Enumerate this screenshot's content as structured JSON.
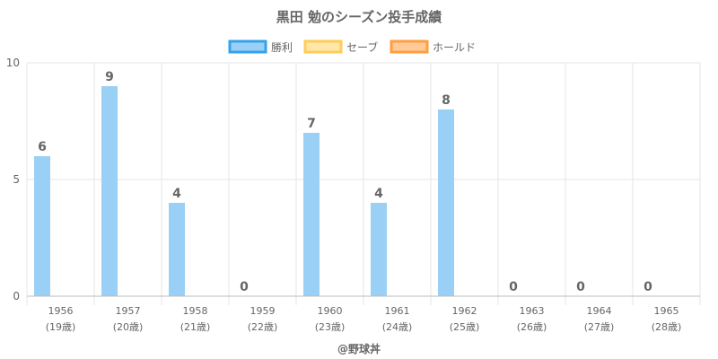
{
  "chart_data": {
    "type": "bar",
    "title": "黒田 勉のシーズン投手成績",
    "categories": [
      "1956",
      "1957",
      "1958",
      "1959",
      "1960",
      "1961",
      "1962",
      "1963",
      "1964",
      "1965"
    ],
    "ages": [
      "(19歳)",
      "(20歳)",
      "(21歳)",
      "(22歳)",
      "(23歳)",
      "(24歳)",
      "(25歳)",
      "(26歳)",
      "(27歳)",
      "(28歳)"
    ],
    "series": [
      {
        "name": "勝利",
        "values": [
          6,
          9,
          4,
          0,
          7,
          4,
          8,
          0,
          0,
          0
        ],
        "color": "#9ad0f5",
        "border": "#36a2eb"
      },
      {
        "name": "セーブ",
        "values": [
          0,
          0,
          0,
          0,
          0,
          0,
          0,
          0,
          0,
          0
        ],
        "color": "#ffe6aa",
        "border": "#ffcd56"
      },
      {
        "name": "ホールド",
        "values": [
          0,
          0,
          0,
          0,
          0,
          0,
          0,
          0,
          0,
          0
        ],
        "color": "#ffc999",
        "border": "#ff9f40"
      }
    ],
    "data_labels": [
      "6",
      "9",
      "4",
      "0",
      "7",
      "4",
      "8",
      "0",
      "0",
      "0"
    ],
    "yticks": [
      "0",
      "5",
      "10"
    ],
    "ylim": [
      0,
      10
    ],
    "grid": true,
    "legend_position": "top-center",
    "credit": "@野球丼"
  }
}
